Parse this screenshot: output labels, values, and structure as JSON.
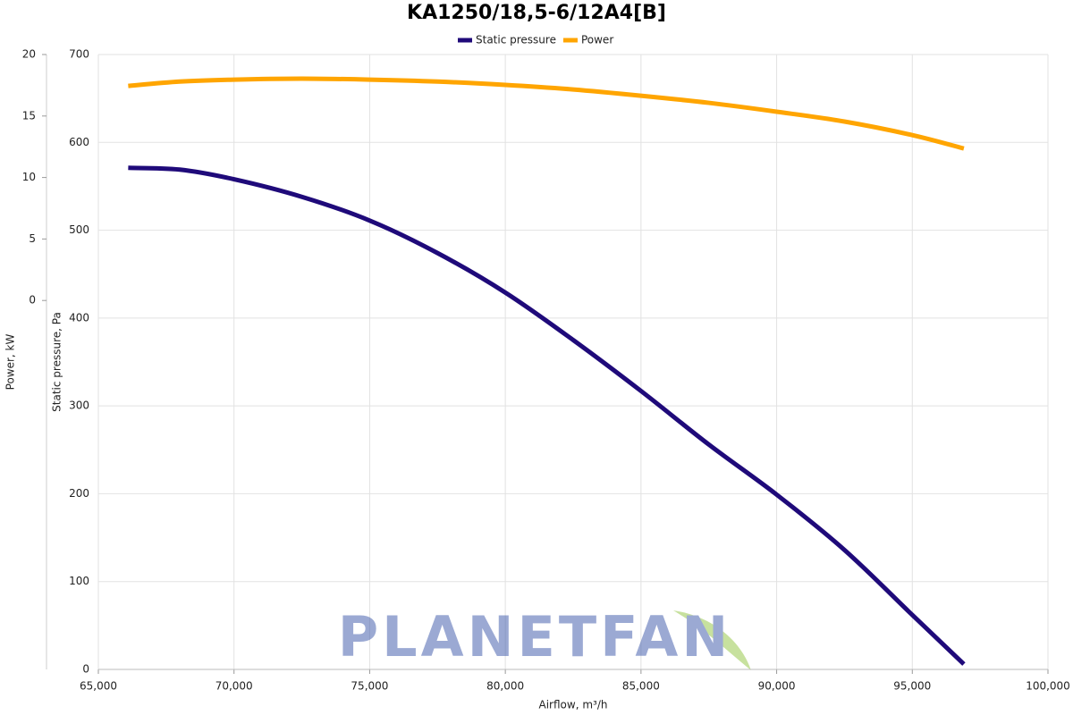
{
  "chart_data": {
    "type": "line",
    "title": "KA1250/18,5-6/12A4[B]",
    "x_label": "Airflow, m³/h",
    "y_label": "Static pressure, Pa",
    "y2_label": "Power, kW",
    "watermark": "PLANETFAN",
    "x": [
      66100,
      68000,
      70000,
      72500,
      75000,
      77500,
      80000,
      82500,
      85000,
      87500,
      90000,
      92500,
      95000,
      96900
    ],
    "series": [
      {
        "name": "Static pressure",
        "color": "#1f0a7a",
        "values": [
          571,
          569,
          558,
          538,
          511,
          474,
          429,
          375,
          317,
          256,
          199,
          136,
          62,
          6
        ]
      },
      {
        "name": "Power",
        "color": "#ffa500",
        "axis": "y2",
        "values": [
          17.45,
          17.8,
          17.96,
          18.04,
          17.96,
          17.8,
          17.53,
          17.16,
          16.65,
          16.07,
          15.35,
          14.55,
          13.45,
          12.36
        ]
      }
    ],
    "xlim": [
      65000,
      100000
    ],
    "xticks": [
      {
        "value": 65000,
        "label": "65,000"
      },
      {
        "value": 70000,
        "label": "70,000"
      },
      {
        "value": 75000,
        "label": "75,000"
      },
      {
        "value": 80000,
        "label": "80,000"
      },
      {
        "value": 85000,
        "label": "85,000"
      },
      {
        "value": 90000,
        "label": "90,000"
      },
      {
        "value": 95000,
        "label": "95,000"
      },
      {
        "value": 100000,
        "label": "100,000"
      }
    ],
    "ylim": [
      0,
      700
    ],
    "yticks": [
      0,
      100,
      200,
      300,
      400,
      500,
      600,
      700
    ],
    "y2lim": [
      -30,
      20
    ],
    "y2ticks": [
      0,
      5,
      10,
      15,
      20
    ],
    "grid": true,
    "legend": "top"
  }
}
